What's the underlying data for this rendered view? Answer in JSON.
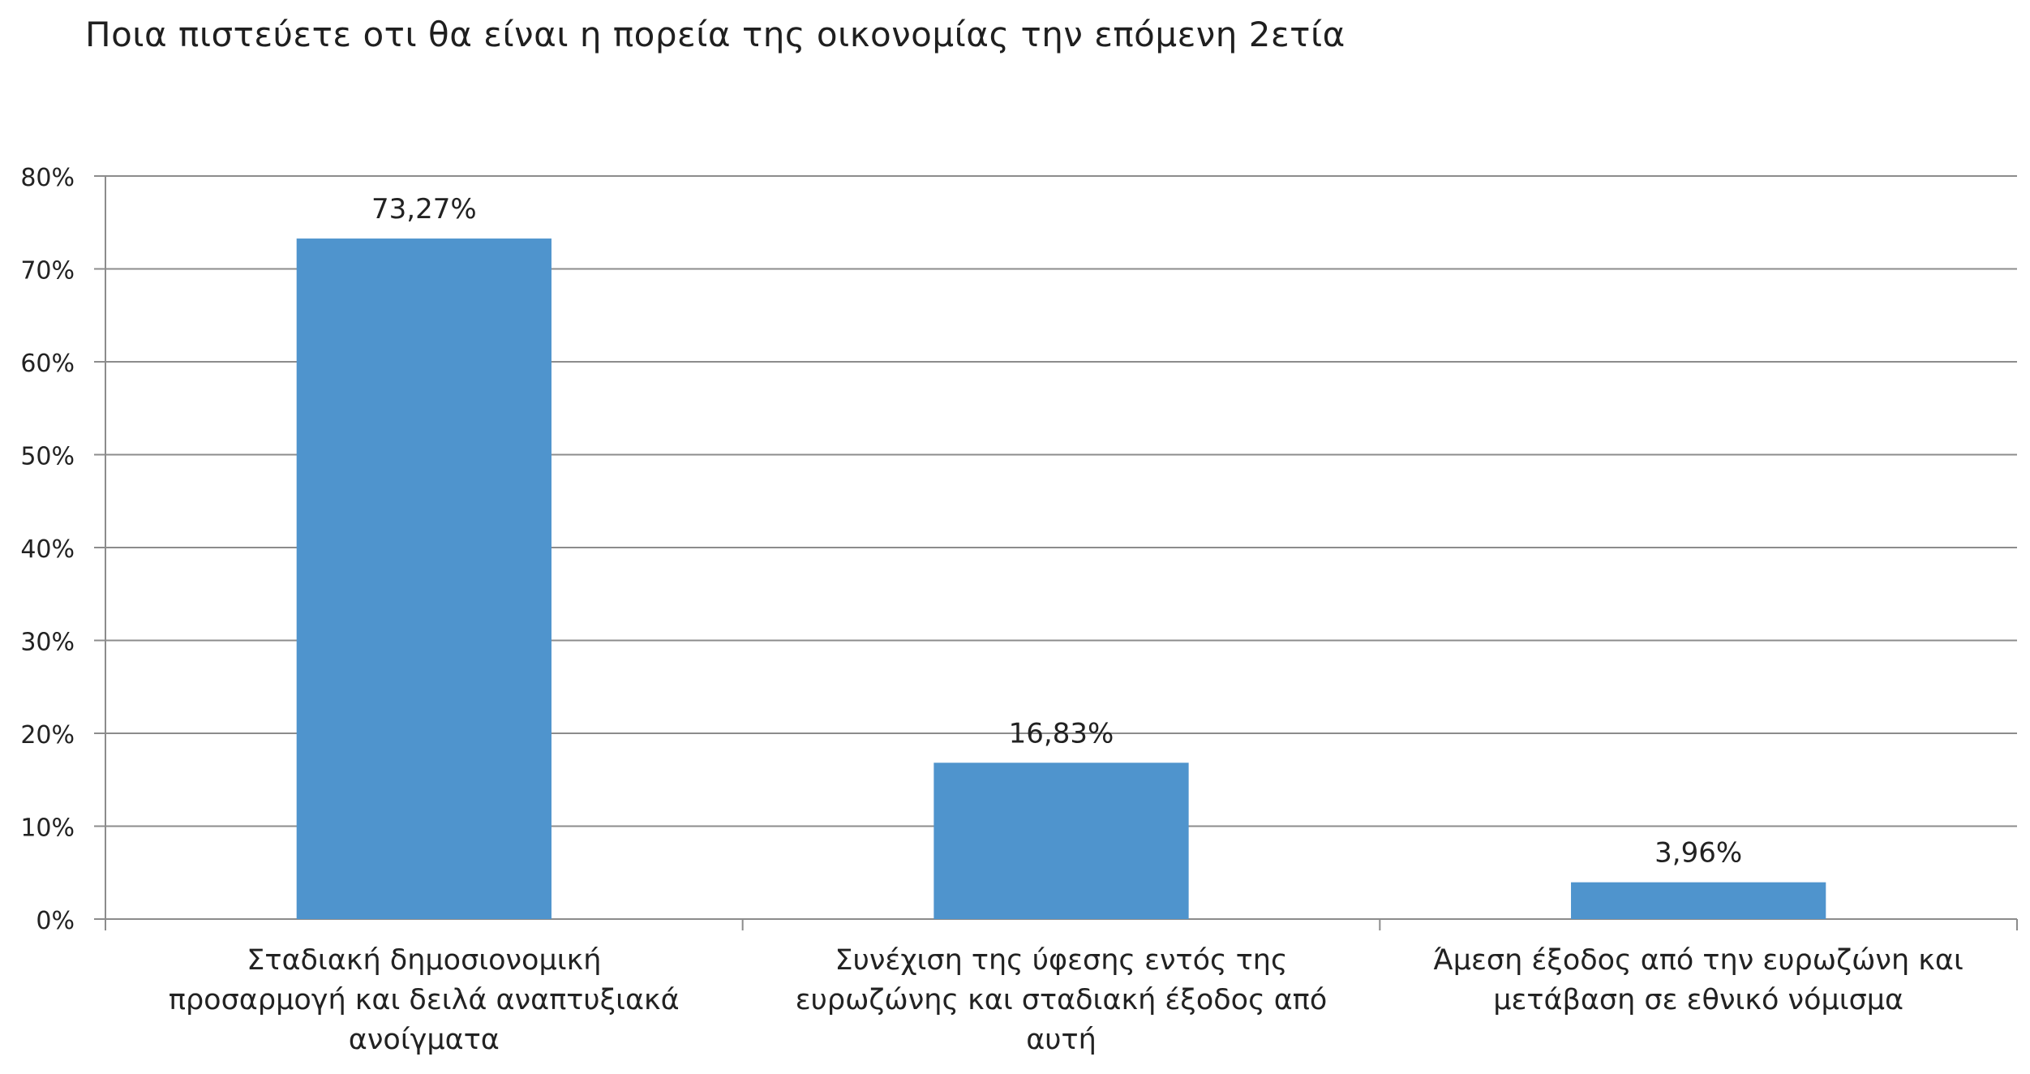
{
  "chart_data": {
    "type": "bar",
    "title": "Ποια πιστεύετε οτι θα είναι η πορεία της οικονομίας την επόμενη  2ετία",
    "xlabel": "",
    "ylabel": "",
    "categories": [
      [
        "Σταδιακή δημοσιονομική",
        "προσαρμογή και δειλά αναπτυξιακά",
        "ανοίγματα"
      ],
      [
        "Συνέχιση της ύφεσης εντός της",
        "ευρωζώνης και σταδιακή έξοδος από",
        "αυτή"
      ],
      [
        "Άμεση έξοδος από την ευρωζώνη και",
        "μετάβαση σε εθνικό νόμισμα"
      ]
    ],
    "values": [
      73.27,
      16.83,
      3.96
    ],
    "data_labels": [
      "73,27%",
      "16,83%",
      "3,96%"
    ],
    "y_ticks": [
      "0%",
      "10%",
      "20%",
      "30%",
      "40%",
      "50%",
      "60%",
      "70%",
      "80%"
    ],
    "ylim": [
      0,
      80
    ],
    "grid": true,
    "legend": "none",
    "colors": {
      "bar": "#4f94cd",
      "grid": "#8c8c8c",
      "axis": "#8c8c8c",
      "text": "#222222"
    }
  }
}
